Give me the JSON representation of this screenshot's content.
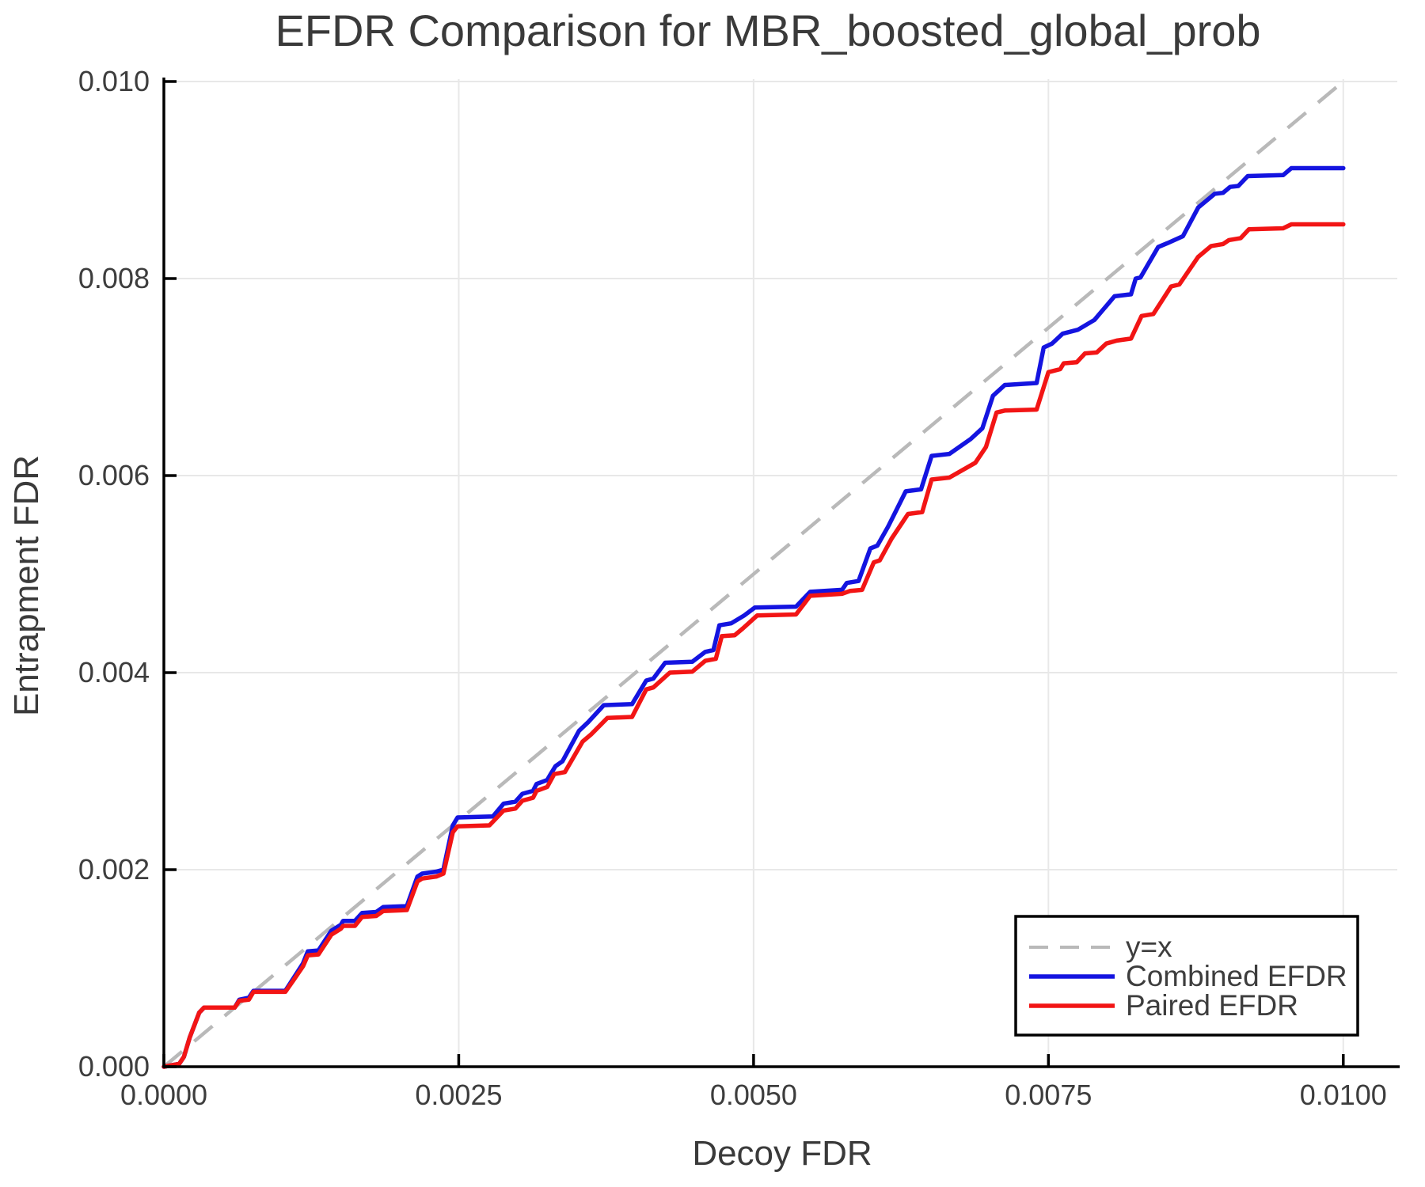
{
  "title": "EFDR Comparison for MBR_boosted_global_prob",
  "axes": {
    "x_label": "Decoy FDR",
    "y_label": "Entrapment FDR",
    "x_ticks": {
      "values": [
        0.0,
        0.0025,
        0.005,
        0.0075,
        0.01
      ],
      "labels": [
        "0.0000",
        "0.0025",
        "0.0050",
        "0.0075",
        "0.0100"
      ]
    },
    "y_ticks": {
      "values": [
        0.0,
        0.002,
        0.004,
        0.006,
        0.008,
        0.01
      ],
      "labels": [
        "0.000",
        "0.002",
        "0.004",
        "0.006",
        "0.008",
        "0.010"
      ]
    }
  },
  "colors": {
    "grid": "#e8e8e8",
    "spine": "#000000",
    "text": "#3a3a3a",
    "tick_text": "#3d3d3d",
    "reference": "#b9b9b9",
    "combined": "#1414e0",
    "paired": "#f21515",
    "legend_border": "#000000",
    "legend_bg": "#ffffff"
  },
  "legend": {
    "items": [
      {
        "label": "y=x",
        "color": "#b9b9b9",
        "dashed": true
      },
      {
        "label": "Combined EFDR",
        "color": "#1414e0",
        "dashed": false
      },
      {
        "label": "Paired EFDR",
        "color": "#f21515",
        "dashed": false
      }
    ]
  },
  "chart_data": {
    "type": "line",
    "title": "EFDR Comparison for MBR_boosted_global_prob",
    "xlabel": "Decoy FDR",
    "ylabel": "Entrapment FDR",
    "xlim": [
      0.0,
      0.010458
    ],
    "ylim": [
      0.0,
      0.010024
    ],
    "grid": "on",
    "legend_position": "lower right",
    "reference_line": {
      "label": "y=x",
      "from": [
        0.0,
        0.0
      ],
      "to": [
        0.010024,
        0.010024
      ],
      "color": "#b9b9b9",
      "style": "dashed"
    },
    "series": [
      {
        "name": "Combined EFDR",
        "color": "#1414e0",
        "points": [
          [
            0.0,
            0.0
          ],
          [
            0.00013,
            3e-05
          ],
          [
            0.00017,
            0.0001
          ],
          [
            0.00022,
            0.0003
          ],
          [
            0.0003,
            0.00055
          ],
          [
            0.00034,
            0.0006
          ],
          [
            0.0006,
            0.0006
          ],
          [
            0.00064,
            0.00068
          ],
          [
            0.00072,
            0.0007
          ],
          [
            0.00076,
            0.00077
          ],
          [
            0.00103,
            0.00077
          ],
          [
            0.0011,
            0.0009
          ],
          [
            0.00118,
            0.00105
          ],
          [
            0.00122,
            0.00117
          ],
          [
            0.00131,
            0.00118
          ],
          [
            0.00142,
            0.00138
          ],
          [
            0.0015,
            0.00144
          ],
          [
            0.00152,
            0.00148
          ],
          [
            0.00162,
            0.00148
          ],
          [
            0.00168,
            0.00156
          ],
          [
            0.0018,
            0.00157
          ],
          [
            0.00186,
            0.00162
          ],
          [
            0.00206,
            0.00163
          ],
          [
            0.00215,
            0.00193
          ],
          [
            0.00219,
            0.00196
          ],
          [
            0.00231,
            0.00198
          ],
          [
            0.00237,
            0.002
          ],
          [
            0.00245,
            0.00245
          ],
          [
            0.00249,
            0.00253
          ],
          [
            0.00279,
            0.00254
          ],
          [
            0.00288,
            0.00267
          ],
          [
            0.00298,
            0.00269
          ],
          [
            0.00304,
            0.00277
          ],
          [
            0.00313,
            0.0028
          ],
          [
            0.00316,
            0.00287
          ],
          [
            0.00325,
            0.00291
          ],
          [
            0.00328,
            0.00297
          ],
          [
            0.00332,
            0.00305
          ],
          [
            0.00338,
            0.0031
          ],
          [
            0.00352,
            0.00341
          ],
          [
            0.0036,
            0.0035
          ],
          [
            0.00373,
            0.00367
          ],
          [
            0.00397,
            0.00368
          ],
          [
            0.00409,
            0.00392
          ],
          [
            0.00415,
            0.00394
          ],
          [
            0.00425,
            0.0041
          ],
          [
            0.00448,
            0.00411
          ],
          [
            0.00459,
            0.00421
          ],
          [
            0.00466,
            0.00423
          ],
          [
            0.00471,
            0.00448
          ],
          [
            0.00481,
            0.0045
          ],
          [
            0.00492,
            0.00458
          ],
          [
            0.00501,
            0.00466
          ],
          [
            0.00536,
            0.00467
          ],
          [
            0.00548,
            0.00482
          ],
          [
            0.00575,
            0.00484
          ],
          [
            0.00579,
            0.00491
          ],
          [
            0.00589,
            0.00493
          ],
          [
            0.00599,
            0.00526
          ],
          [
            0.00605,
            0.00529
          ],
          [
            0.00614,
            0.00548
          ],
          [
            0.00629,
            0.00584
          ],
          [
            0.00642,
            0.00586
          ],
          [
            0.00651,
            0.0062
          ],
          [
            0.00666,
            0.00622
          ],
          [
            0.00684,
            0.00637
          ],
          [
            0.00694,
            0.00648
          ],
          [
            0.00703,
            0.00681
          ],
          [
            0.00713,
            0.00692
          ],
          [
            0.0074,
            0.00694
          ],
          [
            0.00746,
            0.0073
          ],
          [
            0.00753,
            0.00734
          ],
          [
            0.00762,
            0.00744
          ],
          [
            0.00775,
            0.00748
          ],
          [
            0.00789,
            0.00758
          ],
          [
            0.00806,
            0.00782
          ],
          [
            0.0082,
            0.00784
          ],
          [
            0.00824,
            0.008
          ],
          [
            0.00828,
            0.00801
          ],
          [
            0.00843,
            0.00832
          ],
          [
            0.00851,
            0.00836
          ],
          [
            0.00864,
            0.00843
          ],
          [
            0.00877,
            0.00872
          ],
          [
            0.00891,
            0.00886
          ],
          [
            0.00898,
            0.00887
          ],
          [
            0.00904,
            0.00893
          ],
          [
            0.00911,
            0.00894
          ],
          [
            0.00919,
            0.00904
          ],
          [
            0.00949,
            0.00905
          ],
          [
            0.00956,
            0.00912
          ],
          [
            0.01,
            0.00912
          ]
        ]
      },
      {
        "name": "Paired EFDR",
        "color": "#f21515",
        "points": [
          [
            0.0,
            0.0
          ],
          [
            0.00013,
            3e-05
          ],
          [
            0.00017,
            0.0001
          ],
          [
            0.00022,
            0.0003
          ],
          [
            0.0003,
            0.00055
          ],
          [
            0.00034,
            0.0006
          ],
          [
            0.0006,
            0.0006
          ],
          [
            0.00064,
            0.00067
          ],
          [
            0.00072,
            0.00068
          ],
          [
            0.00076,
            0.00076
          ],
          [
            0.00103,
            0.00076
          ],
          [
            0.0011,
            0.00088
          ],
          [
            0.00118,
            0.00102
          ],
          [
            0.00122,
            0.00113
          ],
          [
            0.00131,
            0.00114
          ],
          [
            0.00142,
            0.00134
          ],
          [
            0.0015,
            0.0014
          ],
          [
            0.00152,
            0.00143
          ],
          [
            0.00162,
            0.00143
          ],
          [
            0.00168,
            0.00152
          ],
          [
            0.0018,
            0.00153
          ],
          [
            0.00186,
            0.00158
          ],
          [
            0.00206,
            0.00159
          ],
          [
            0.00215,
            0.00188
          ],
          [
            0.00219,
            0.00191
          ],
          [
            0.00231,
            0.00193
          ],
          [
            0.00237,
            0.00196
          ],
          [
            0.00245,
            0.00238
          ],
          [
            0.00249,
            0.00244
          ],
          [
            0.00276,
            0.00245
          ],
          [
            0.00288,
            0.0026
          ],
          [
            0.00298,
            0.00262
          ],
          [
            0.00304,
            0.0027
          ],
          [
            0.00313,
            0.00273
          ],
          [
            0.00316,
            0.0028
          ],
          [
            0.00325,
            0.00284
          ],
          [
            0.00331,
            0.00297
          ],
          [
            0.0034,
            0.00299
          ],
          [
            0.00355,
            0.0033
          ],
          [
            0.00362,
            0.00337
          ],
          [
            0.00376,
            0.00354
          ],
          [
            0.00397,
            0.00355
          ],
          [
            0.00409,
            0.00383
          ],
          [
            0.00415,
            0.00385
          ],
          [
            0.00429,
            0.004
          ],
          [
            0.00448,
            0.00401
          ],
          [
            0.00459,
            0.00412
          ],
          [
            0.00468,
            0.00414
          ],
          [
            0.00473,
            0.00437
          ],
          [
            0.00484,
            0.00438
          ],
          [
            0.00491,
            0.00445
          ],
          [
            0.00503,
            0.00458
          ],
          [
            0.00536,
            0.00459
          ],
          [
            0.00548,
            0.00478
          ],
          [
            0.00575,
            0.0048
          ],
          [
            0.00582,
            0.00483
          ],
          [
            0.00592,
            0.00484
          ],
          [
            0.00602,
            0.00512
          ],
          [
            0.00607,
            0.00514
          ],
          [
            0.00617,
            0.00536
          ],
          [
            0.00631,
            0.00561
          ],
          [
            0.00643,
            0.00563
          ],
          [
            0.00651,
            0.00596
          ],
          [
            0.00666,
            0.00598
          ],
          [
            0.00688,
            0.00613
          ],
          [
            0.00697,
            0.00629
          ],
          [
            0.00706,
            0.00664
          ],
          [
            0.00713,
            0.00666
          ],
          [
            0.0074,
            0.00667
          ],
          [
            0.0075,
            0.00705
          ],
          [
            0.0076,
            0.00708
          ],
          [
            0.00763,
            0.00714
          ],
          [
            0.00774,
            0.00715
          ],
          [
            0.00781,
            0.00724
          ],
          [
            0.00791,
            0.00725
          ],
          [
            0.00799,
            0.00734
          ],
          [
            0.00808,
            0.00737
          ],
          [
            0.0082,
            0.00739
          ],
          [
            0.00829,
            0.00762
          ],
          [
            0.00839,
            0.00764
          ],
          [
            0.00854,
            0.00792
          ],
          [
            0.00861,
            0.00794
          ],
          [
            0.00877,
            0.00822
          ],
          [
            0.00888,
            0.00833
          ],
          [
            0.00898,
            0.00835
          ],
          [
            0.00903,
            0.00839
          ],
          [
            0.00913,
            0.00841
          ],
          [
            0.0092,
            0.0085
          ],
          [
            0.00949,
            0.00851
          ],
          [
            0.00956,
            0.00855
          ],
          [
            0.01,
            0.00855
          ]
        ]
      }
    ]
  }
}
